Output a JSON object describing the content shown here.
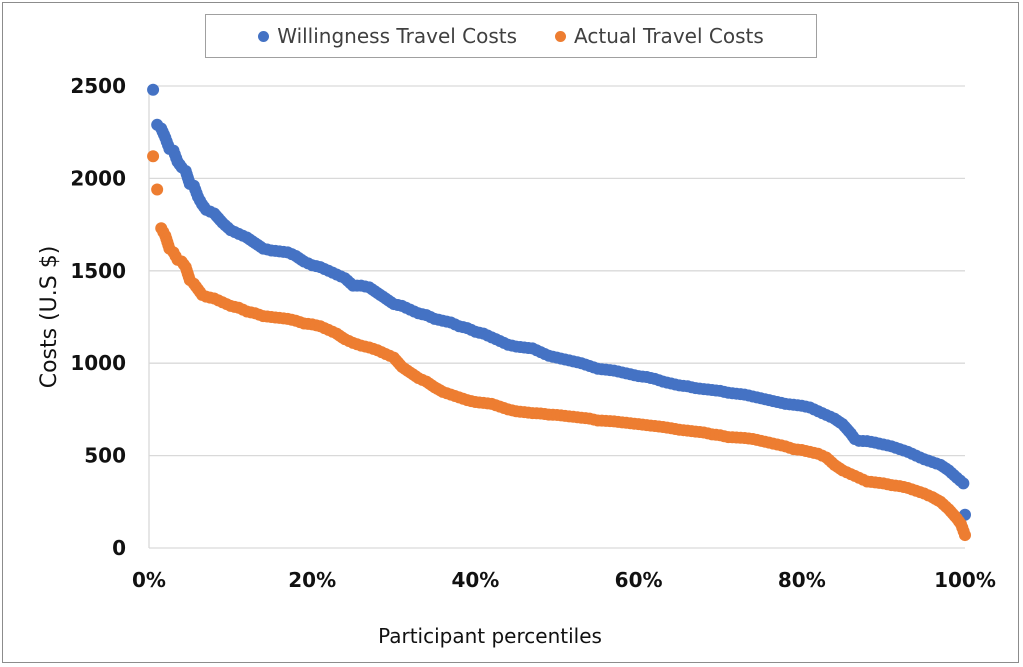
{
  "chart_data": {
    "type": "scatter",
    "title": "",
    "xlabel": "Participant percentiles",
    "ylabel": "Costs (U.S $)",
    "xlim": [
      0,
      100
    ],
    "ylim": [
      0,
      2500
    ],
    "grid": true,
    "legend_position": "top",
    "x_ticks": [
      "0%",
      "20%",
      "40%",
      "60%",
      "80%",
      "100%"
    ],
    "y_ticks": [
      "0",
      "500",
      "1000",
      "1500",
      "2000",
      "2500"
    ],
    "series": [
      {
        "name": "Willingness Travel Costs",
        "color": "#4472c4",
        "points": [
          [
            0.5,
            2480
          ],
          [
            1,
            2290
          ],
          [
            1.5,
            2270
          ],
          [
            2,
            2220
          ],
          [
            2.5,
            2160
          ],
          [
            3,
            2150
          ],
          [
            3.5,
            2090
          ],
          [
            4,
            2060
          ],
          [
            4.5,
            2040
          ],
          [
            5,
            1970
          ],
          [
            5.5,
            1960
          ],
          [
            6,
            1900
          ],
          [
            6.5,
            1860
          ],
          [
            7,
            1830
          ],
          [
            8,
            1810
          ],
          [
            9,
            1760
          ],
          [
            10,
            1720
          ],
          [
            11,
            1700
          ],
          [
            12,
            1680
          ],
          [
            13,
            1650
          ],
          [
            14,
            1620
          ],
          [
            15,
            1610
          ],
          [
            16,
            1605
          ],
          [
            17,
            1600
          ],
          [
            18,
            1580
          ],
          [
            19,
            1550
          ],
          [
            20,
            1530
          ],
          [
            21,
            1520
          ],
          [
            22,
            1500
          ],
          [
            23,
            1480
          ],
          [
            24,
            1460
          ],
          [
            25,
            1420
          ],
          [
            26,
            1420
          ],
          [
            27,
            1410
          ],
          [
            28,
            1380
          ],
          [
            29,
            1350
          ],
          [
            30,
            1320
          ],
          [
            31,
            1310
          ],
          [
            32,
            1290
          ],
          [
            33,
            1270
          ],
          [
            34,
            1260
          ],
          [
            35,
            1240
          ],
          [
            36,
            1230
          ],
          [
            37,
            1220
          ],
          [
            38,
            1200
          ],
          [
            39,
            1190
          ],
          [
            40,
            1170
          ],
          [
            41,
            1160
          ],
          [
            42,
            1140
          ],
          [
            43,
            1120
          ],
          [
            44,
            1100
          ],
          [
            45,
            1090
          ],
          [
            46,
            1085
          ],
          [
            47,
            1080
          ],
          [
            48,
            1060
          ],
          [
            49,
            1040
          ],
          [
            50,
            1030
          ],
          [
            51,
            1020
          ],
          [
            52,
            1010
          ],
          [
            53,
            1000
          ],
          [
            54,
            985
          ],
          [
            55,
            970
          ],
          [
            56,
            965
          ],
          [
            57,
            960
          ],
          [
            58,
            950
          ],
          [
            59,
            940
          ],
          [
            60,
            930
          ],
          [
            61,
            925
          ],
          [
            62,
            915
          ],
          [
            63,
            900
          ],
          [
            64,
            890
          ],
          [
            65,
            880
          ],
          [
            66,
            875
          ],
          [
            67,
            865
          ],
          [
            68,
            860
          ],
          [
            69,
            855
          ],
          [
            70,
            850
          ],
          [
            71,
            840
          ],
          [
            72,
            835
          ],
          [
            73,
            830
          ],
          [
            74,
            820
          ],
          [
            75,
            810
          ],
          [
            76,
            800
          ],
          [
            77,
            790
          ],
          [
            78,
            780
          ],
          [
            79,
            775
          ],
          [
            80,
            770
          ],
          [
            81,
            760
          ],
          [
            82,
            740
          ],
          [
            83,
            720
          ],
          [
            84,
            700
          ],
          [
            85,
            670
          ],
          [
            86,
            620
          ],
          [
            86.5,
            590
          ],
          [
            87,
            580
          ],
          [
            88,
            578
          ],
          [
            89,
            570
          ],
          [
            90,
            560
          ],
          [
            91,
            550
          ],
          [
            92,
            535
          ],
          [
            93,
            520
          ],
          [
            94,
            500
          ],
          [
            95,
            480
          ],
          [
            96,
            465
          ],
          [
            97,
            450
          ],
          [
            98,
            420
          ],
          [
            99,
            380
          ],
          [
            99.8,
            350
          ],
          [
            100,
            180
          ]
        ]
      },
      {
        "name": "Actual Travel Costs",
        "color": "#ed7d31",
        "points": [
          [
            0.5,
            2120
          ],
          [
            1,
            1940
          ],
          [
            1.5,
            1730
          ],
          [
            2,
            1690
          ],
          [
            2.5,
            1620
          ],
          [
            3,
            1600
          ],
          [
            3.5,
            1560
          ],
          [
            4,
            1550
          ],
          [
            4.5,
            1520
          ],
          [
            5,
            1450
          ],
          [
            5.5,
            1430
          ],
          [
            6,
            1400
          ],
          [
            6.5,
            1370
          ],
          [
            7,
            1360
          ],
          [
            8,
            1350
          ],
          [
            9,
            1330
          ],
          [
            10,
            1310
          ],
          [
            11,
            1300
          ],
          [
            12,
            1280
          ],
          [
            13,
            1270
          ],
          [
            14,
            1255
          ],
          [
            15,
            1250
          ],
          [
            16,
            1245
          ],
          [
            17,
            1240
          ],
          [
            18,
            1230
          ],
          [
            19,
            1215
          ],
          [
            20,
            1210
          ],
          [
            21,
            1200
          ],
          [
            22,
            1180
          ],
          [
            23,
            1160
          ],
          [
            24,
            1130
          ],
          [
            25,
            1110
          ],
          [
            26,
            1095
          ],
          [
            27,
            1085
          ],
          [
            28,
            1070
          ],
          [
            29,
            1050
          ],
          [
            30,
            1030
          ],
          [
            31,
            980
          ],
          [
            32,
            950
          ],
          [
            33,
            920
          ],
          [
            34,
            900
          ],
          [
            35,
            870
          ],
          [
            36,
            845
          ],
          [
            37,
            830
          ],
          [
            38,
            815
          ],
          [
            39,
            800
          ],
          [
            40,
            790
          ],
          [
            41,
            785
          ],
          [
            42,
            780
          ],
          [
            43,
            765
          ],
          [
            44,
            750
          ],
          [
            45,
            740
          ],
          [
            46,
            735
          ],
          [
            47,
            730
          ],
          [
            48,
            728
          ],
          [
            49,
            722
          ],
          [
            50,
            720
          ],
          [
            51,
            715
          ],
          [
            52,
            710
          ],
          [
            53,
            705
          ],
          [
            54,
            700
          ],
          [
            55,
            690
          ],
          [
            56,
            688
          ],
          [
            57,
            685
          ],
          [
            58,
            680
          ],
          [
            59,
            675
          ],
          [
            60,
            670
          ],
          [
            61,
            665
          ],
          [
            62,
            660
          ],
          [
            63,
            655
          ],
          [
            64,
            648
          ],
          [
            65,
            640
          ],
          [
            66,
            635
          ],
          [
            67,
            630
          ],
          [
            68,
            625
          ],
          [
            69,
            615
          ],
          [
            70,
            610
          ],
          [
            71,
            600
          ],
          [
            72,
            598
          ],
          [
            73,
            595
          ],
          [
            74,
            590
          ],
          [
            75,
            580
          ],
          [
            76,
            570
          ],
          [
            77,
            560
          ],
          [
            78,
            550
          ],
          [
            79,
            535
          ],
          [
            80,
            530
          ],
          [
            81,
            520
          ],
          [
            82,
            510
          ],
          [
            83,
            490
          ],
          [
            84,
            450
          ],
          [
            85,
            420
          ],
          [
            86,
            400
          ],
          [
            87,
            380
          ],
          [
            88,
            360
          ],
          [
            89,
            355
          ],
          [
            90,
            350
          ],
          [
            91,
            340
          ],
          [
            92,
            335
          ],
          [
            93,
            325
          ],
          [
            94,
            310
          ],
          [
            95,
            295
          ],
          [
            96,
            275
          ],
          [
            97,
            250
          ],
          [
            98,
            210
          ],
          [
            99,
            160
          ],
          [
            99.5,
            130
          ],
          [
            100,
            70
          ]
        ]
      }
    ]
  }
}
